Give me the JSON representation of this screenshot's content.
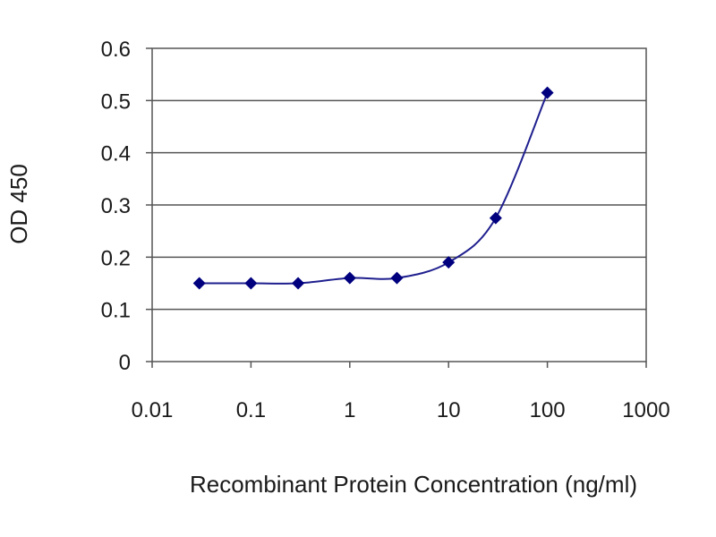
{
  "chart_data": {
    "type": "scatter",
    "xlabel": "Recombinant  Protein Concentration (ng/ml)",
    "ylabel": "OD 450",
    "x_scale": "log",
    "xlim": [
      0.01,
      1000
    ],
    "ylim": [
      0,
      0.6
    ],
    "x_ticks": [
      0.01,
      0.1,
      1,
      10,
      100,
      1000
    ],
    "x_tick_labels": [
      "0.01",
      "0.1",
      "1",
      "10",
      "100",
      "1000"
    ],
    "y_ticks": [
      0,
      0.1,
      0.2,
      0.3,
      0.4,
      0.5,
      0.6
    ],
    "y_tick_labels": [
      "0",
      "0.1",
      "0.2",
      "0.3",
      "0.4",
      "0.5",
      "0.6"
    ],
    "grid": "horizontal",
    "legend": "none",
    "series": [
      {
        "x": [
          0.03,
          0.1,
          0.3,
          1,
          3,
          10,
          30,
          100
        ],
        "y": [
          0.15,
          0.15,
          0.15,
          0.16,
          0.16,
          0.19,
          0.275,
          0.515
        ],
        "color": "#00007f",
        "marker": "diamond",
        "line": "smooth"
      }
    ]
  }
}
